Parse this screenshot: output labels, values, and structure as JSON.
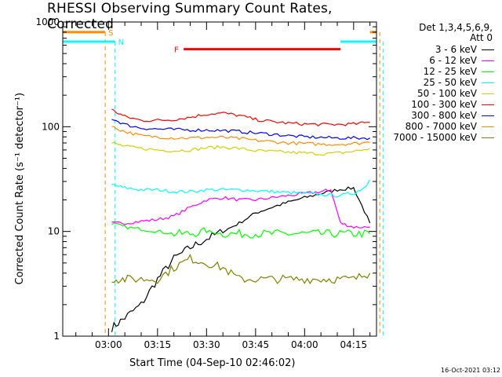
{
  "chart_data": {
    "type": "line",
    "title": "RHESSI Observing Summary Count Rates, Corrected",
    "xlabel": "Start Time (04-Sep-10 02:46:02)",
    "ylabel": "Corrected Count Rate (s⁻¹ detector⁻¹)",
    "y_scale": "log",
    "ylim": [
      1,
      1000
    ],
    "y_ticks": [
      "1",
      "10",
      "100",
      "1000"
    ],
    "x_ticks": [
      "03:00",
      "03:15",
      "03:30",
      "03:45",
      "04:00",
      "04:15"
    ],
    "x_range_minutes": [
      166,
      262
    ],
    "legend_header": [
      "Det 1,3,4,5,6,9,",
      "Att 0"
    ],
    "grid": false,
    "legend_position": "right",
    "series": [
      {
        "name": "3 - 6 keV",
        "color": "#000000",
        "t": [
          181,
          185,
          190,
          195,
          200,
          205,
          210,
          215,
          220,
          225,
          230,
          235,
          240,
          245,
          250,
          255,
          260
        ],
        "v": [
          1.2,
          1.5,
          2,
          3.5,
          5.5,
          7,
          8.5,
          10,
          12,
          15,
          17,
          19,
          21,
          23,
          25,
          26,
          12
        ]
      },
      {
        "name": "6 - 12 keV",
        "color": "#ff00ff",
        "t": [
          181,
          185,
          190,
          195,
          200,
          205,
          210,
          215,
          220,
          225,
          230,
          235,
          240,
          245,
          248,
          251,
          255,
          260
        ],
        "v": [
          12,
          12,
          12.5,
          13,
          14,
          17,
          20,
          21,
          20,
          20,
          21,
          22,
          23,
          24,
          25,
          12,
          11,
          11
        ]
      },
      {
        "name": "12 - 25 keV",
        "color": "#00ff00",
        "t": [
          181,
          185,
          190,
          195,
          200,
          205,
          210,
          215,
          220,
          225,
          230,
          235,
          240,
          245,
          250,
          255,
          260
        ],
        "v": [
          12,
          11,
          10.5,
          10,
          9.5,
          9.5,
          10,
          9.5,
          9.5,
          9.5,
          9.5,
          9.5,
          9.5,
          9.5,
          9.5,
          9.5,
          9.5
        ]
      },
      {
        "name": "25 - 50 keV",
        "color": "#00ffff",
        "t": [
          181,
          185,
          190,
          195,
          200,
          205,
          210,
          215,
          220,
          225,
          230,
          235,
          240,
          245,
          250,
          255,
          258,
          260
        ],
        "v": [
          28,
          26,
          25,
          25,
          24,
          24,
          25,
          25,
          25,
          24.5,
          24,
          23.5,
          23,
          22.5,
          22,
          23,
          26,
          31
        ]
      },
      {
        "name": "50 - 100 keV",
        "color": "#d0d000",
        "t": [
          181,
          185,
          190,
          195,
          200,
          205,
          210,
          215,
          220,
          225,
          230,
          235,
          240,
          245,
          250,
          255,
          260
        ],
        "v": [
          70,
          65,
          62,
          60,
          59,
          60,
          63,
          64,
          62,
          59,
          58,
          57,
          56,
          55,
          56,
          58,
          62
        ]
      },
      {
        "name": "100 - 300 keV",
        "color": "#ff0000",
        "t": [
          181,
          185,
          190,
          195,
          200,
          205,
          210,
          215,
          220,
          225,
          230,
          235,
          240,
          245,
          250,
          255,
          260
        ],
        "v": [
          145,
          125,
          115,
          115,
          117,
          123,
          132,
          135,
          128,
          117,
          112,
          108,
          106,
          105,
          105,
          106,
          110
        ]
      },
      {
        "name": "300 - 800 keV",
        "color": "#0000ff",
        "t": [
          181,
          185,
          190,
          195,
          200,
          205,
          210,
          215,
          220,
          225,
          230,
          235,
          240,
          245,
          250,
          255,
          260
        ],
        "v": [
          120,
          105,
          97,
          95,
          94,
          93,
          93,
          92,
          90,
          87,
          85,
          82,
          80,
          79,
          78,
          78,
          78
        ]
      },
      {
        "name": "800 - 7000 keV",
        "color": "#ff8c00",
        "t": [
          181,
          185,
          190,
          195,
          200,
          205,
          210,
          215,
          220,
          225,
          230,
          235,
          240,
          245,
          250,
          255,
          260
        ],
        "v": [
          100,
          90,
          82,
          80,
          78,
          78,
          79,
          79,
          77,
          74,
          72,
          70,
          69,
          68,
          68,
          69,
          71
        ]
      },
      {
        "name": "7000 - 15000 keV",
        "color": "#808000",
        "t": [
          181,
          185,
          190,
          195,
          200,
          205,
          210,
          215,
          220,
          225,
          230,
          235,
          240,
          245,
          250,
          255,
          260
        ],
        "v": [
          3.5,
          3.5,
          3.5,
          3.5,
          4.5,
          5.5,
          5,
          4.5,
          3.5,
          3.5,
          3.5,
          3.5,
          3.5,
          3.5,
          3.5,
          3.5,
          4
        ]
      }
    ],
    "annotations": [
      {
        "label": "S",
        "color": "#ff8c00",
        "bar_level": 800,
        "bar_ranges": [
          [
            166,
            179
          ],
          [
            260,
            262
          ]
        ],
        "dashed_lines_t": [
          179,
          263
        ]
      },
      {
        "label": "N",
        "color": "#00ffff",
        "bar_level": 650,
        "bar_ranges": [
          [
            166,
            182
          ],
          [
            251,
            262
          ]
        ],
        "dashed_lines_t": [
          182,
          264
        ]
      },
      {
        "label": "F",
        "color": "#ff0000",
        "bar_level": 550,
        "bar_ranges": [
          [
            203,
            251
          ]
        ],
        "dashed_lines_t": []
      }
    ]
  },
  "footer": "16-Oct-2021 03:12"
}
